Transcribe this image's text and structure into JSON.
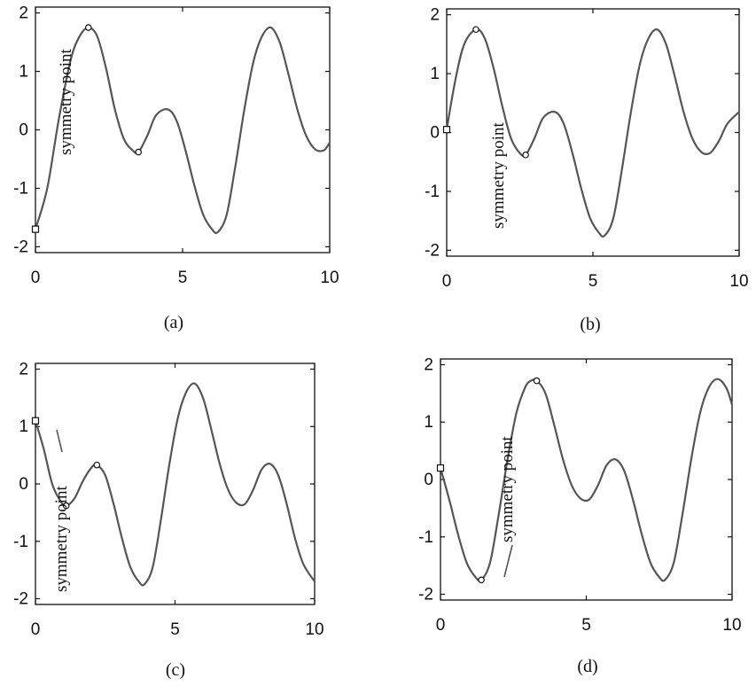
{
  "colors": {
    "curve": "#555555",
    "axes": "#111111",
    "background": "#ffffff"
  },
  "chart_data": [
    {
      "type": "line",
      "caption": "(a)",
      "xlim": [
        0,
        10
      ],
      "ylim": [
        -2.1,
        2.1
      ],
      "xticks": [
        0,
        5,
        10
      ],
      "yticks": [
        -2,
        -1,
        0,
        1,
        2
      ],
      "tick_labels_x": [
        "0",
        "5",
        "10"
      ],
      "tick_labels_y": [
        "-2",
        "-1",
        "0",
        "1",
        "2"
      ],
      "annotation": "symmetry point",
      "square_marker": {
        "x": 0,
        "y": -1.7
      },
      "circle_markers": [
        {
          "x": 1.8,
          "y": 1.75
        },
        {
          "x": 3.5,
          "y": -0.38
        }
      ],
      "series": [
        {
          "x": [
            0,
            0.4,
            0.8,
            1.2,
            1.5,
            1.8,
            2.1,
            2.4,
            2.7,
            3.0,
            3.3,
            3.5,
            3.8,
            4.1,
            4.5,
            4.8,
            5.1,
            5.4,
            5.7,
            6.0,
            6.2,
            6.5,
            6.8,
            7.1,
            7.4,
            7.7,
            8.0,
            8.3,
            8.6,
            8.9,
            9.2,
            9.5,
            9.8,
            10.0
          ],
          "y": [
            -1.7,
            -1.0,
            0.2,
            1.2,
            1.6,
            1.75,
            1.6,
            1.05,
            0.35,
            -0.15,
            -0.35,
            -0.38,
            -0.1,
            0.25,
            0.35,
            0.15,
            -0.35,
            -0.95,
            -1.45,
            -1.7,
            -1.75,
            -1.45,
            -0.6,
            0.35,
            1.15,
            1.6,
            1.75,
            1.5,
            0.95,
            0.35,
            -0.1,
            -0.33,
            -0.35,
            -0.22
          ]
        }
      ]
    },
    {
      "type": "line",
      "caption": "(b)",
      "xlim": [
        0,
        10
      ],
      "ylim": [
        -2.1,
        2.1
      ],
      "xticks": [
        0,
        5,
        10
      ],
      "yticks": [
        -2,
        -1,
        0,
        1,
        2
      ],
      "tick_labels_x": [
        "0",
        "5",
        "10"
      ],
      "tick_labels_y": [
        "-2",
        "-1",
        "0",
        "1",
        "2"
      ],
      "annotation": "symmetry point",
      "square_marker": {
        "x": 0,
        "y": 0.05
      },
      "circle_markers": [
        {
          "x": 1.0,
          "y": 1.75
        },
        {
          "x": 2.7,
          "y": -0.38
        }
      ],
      "series": [
        {
          "x": [
            0,
            0.3,
            0.6,
            1.0,
            1.3,
            1.6,
            1.9,
            2.2,
            2.5,
            2.7,
            3.0,
            3.3,
            3.7,
            4.0,
            4.3,
            4.6,
            4.9,
            5.2,
            5.4,
            5.7,
            6.0,
            6.3,
            6.6,
            6.9,
            7.2,
            7.5,
            7.8,
            8.1,
            8.4,
            8.7,
            9.0,
            9.3,
            9.6,
            10.0
          ],
          "y": [
            0.05,
            0.9,
            1.5,
            1.75,
            1.6,
            1.1,
            0.45,
            -0.1,
            -0.35,
            -0.38,
            -0.1,
            0.25,
            0.35,
            0.15,
            -0.35,
            -0.95,
            -1.45,
            -1.7,
            -1.75,
            -1.45,
            -0.6,
            0.35,
            1.15,
            1.6,
            1.75,
            1.5,
            0.95,
            0.35,
            -0.1,
            -0.33,
            -0.35,
            -0.15,
            0.15,
            0.35
          ]
        }
      ]
    },
    {
      "type": "line",
      "caption": "(c)",
      "xlim": [
        0,
        10
      ],
      "ylim": [
        -2.1,
        2.1
      ],
      "xticks": [
        0,
        5,
        10
      ],
      "yticks": [
        -2,
        -1,
        0,
        1,
        2
      ],
      "tick_labels_x": [
        "0",
        "5",
        "10"
      ],
      "tick_labels_y": [
        "-2",
        "-1",
        "0",
        "1",
        "2"
      ],
      "annotation": "symmetry point",
      "square_marker": {
        "x": 0,
        "y": 1.1
      },
      "circle_markers": [
        {
          "x": 1.1,
          "y": -0.38
        },
        {
          "x": 2.2,
          "y": 0.33
        }
      ],
      "series": [
        {
          "x": [
            0,
            0.3,
            0.6,
            0.9,
            1.1,
            1.4,
            1.7,
            2.0,
            2.2,
            2.5,
            2.8,
            3.1,
            3.4,
            3.7,
            3.9,
            4.2,
            4.5,
            4.8,
            5.1,
            5.4,
            5.7,
            6.0,
            6.3,
            6.6,
            6.9,
            7.2,
            7.5,
            7.8,
            8.1,
            8.4,
            8.7,
            9.0,
            9.3,
            9.6,
            10.0
          ],
          "y": [
            1.1,
            0.6,
            0.0,
            -0.3,
            -0.38,
            -0.25,
            0.05,
            0.28,
            0.33,
            0.15,
            -0.35,
            -0.95,
            -1.45,
            -1.7,
            -1.75,
            -1.45,
            -0.6,
            0.35,
            1.15,
            1.6,
            1.75,
            1.5,
            0.95,
            0.35,
            -0.1,
            -0.33,
            -0.35,
            -0.1,
            0.25,
            0.35,
            0.15,
            -0.35,
            -0.95,
            -1.4,
            -1.7
          ]
        }
      ]
    },
    {
      "type": "line",
      "caption": "(d)",
      "xlim": [
        0,
        10
      ],
      "ylim": [
        -2.1,
        2.1
      ],
      "xticks": [
        0,
        5,
        10
      ],
      "yticks": [
        -2,
        -1,
        0,
        1,
        2
      ],
      "tick_labels_x": [
        "0",
        "5",
        "10"
      ],
      "tick_labels_y": [
        "-2",
        "-1",
        "0",
        "1",
        "2"
      ],
      "annotation": "symmetry point",
      "square_marker": {
        "x": 0,
        "y": 0.2
      },
      "circle_markers": [
        {
          "x": 1.4,
          "y": -1.75
        },
        {
          "x": 3.3,
          "y": 1.72
        }
      ],
      "series": [
        {
          "x": [
            0,
            0.3,
            0.6,
            0.9,
            1.2,
            1.4,
            1.7,
            2.0,
            2.3,
            2.6,
            2.9,
            3.1,
            3.3,
            3.6,
            3.9,
            4.2,
            4.5,
            4.8,
            5.1,
            5.4,
            5.7,
            6.0,
            6.3,
            6.6,
            6.9,
            7.2,
            7.5,
            7.7,
            8.0,
            8.3,
            8.6,
            8.9,
            9.2,
            9.5,
            9.8,
            10.0
          ],
          "y": [
            0.2,
            -0.35,
            -0.95,
            -1.45,
            -1.7,
            -1.75,
            -1.45,
            -0.6,
            0.35,
            1.15,
            1.6,
            1.72,
            1.72,
            1.5,
            0.95,
            0.35,
            -0.1,
            -0.33,
            -0.35,
            -0.1,
            0.25,
            0.35,
            0.15,
            -0.35,
            -0.95,
            -1.45,
            -1.7,
            -1.75,
            -1.45,
            -0.6,
            0.35,
            1.15,
            1.6,
            1.75,
            1.6,
            1.3
          ]
        }
      ]
    }
  ]
}
